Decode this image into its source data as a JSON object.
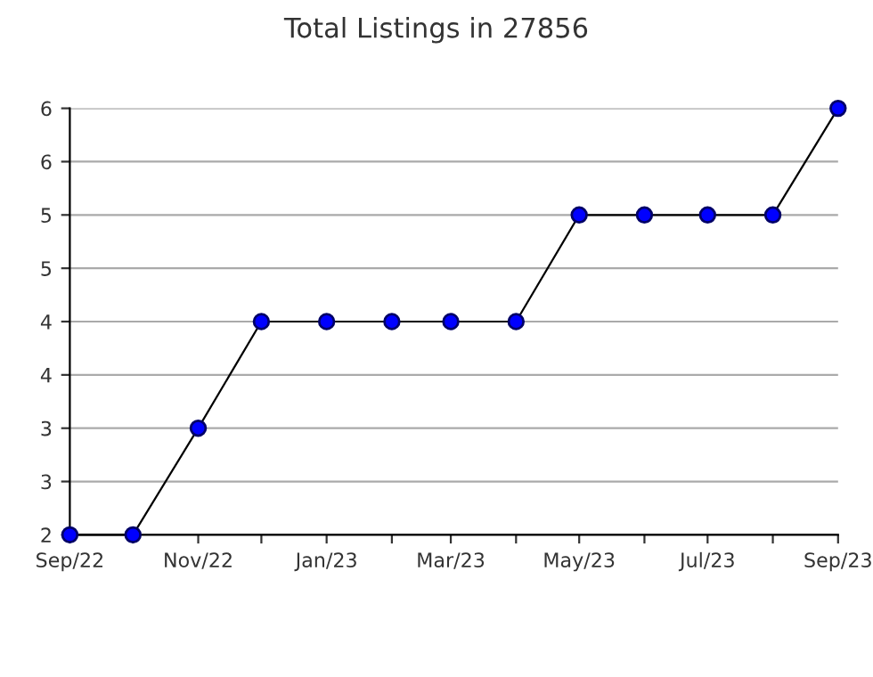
{
  "chart_data": {
    "type": "line",
    "title": "Total Listings in 27856",
    "x": [
      "2022-09",
      "2022-10",
      "2022-11",
      "2022-12",
      "2023-01",
      "2023-02",
      "2023-03",
      "2023-04",
      "2023-05",
      "2023-06",
      "2023-07",
      "2023-08",
      "2023-09"
    ],
    "series": [
      {
        "color": "#0000ff",
        "values": [
          2,
          2,
          3,
          4,
          4,
          4,
          4,
          4,
          5,
          5,
          5,
          5,
          6
        ]
      }
    ],
    "xlim": [
      "2022-09",
      "2023-09"
    ],
    "xticks": [
      {
        "value": "2022-09",
        "label": "Sep/22"
      },
      {
        "value": "2022-10",
        "label": null
      },
      {
        "value": "2022-11",
        "label": "Nov/22"
      },
      {
        "value": "2022-12",
        "label": null
      },
      {
        "value": "2023-01",
        "label": "Jan/23"
      },
      {
        "value": "2023-02",
        "label": null
      },
      {
        "value": "2023-03",
        "label": "Mar/23"
      },
      {
        "value": "2023-04",
        "label": null
      },
      {
        "value": "2023-05",
        "label": "May/23"
      },
      {
        "value": "2023-06",
        "label": null
      },
      {
        "value": "2023-07",
        "label": "Jul/23"
      },
      {
        "value": "2023-08",
        "label": null
      },
      {
        "value": "2023-09",
        "label": "Sep/23"
      }
    ],
    "ylim": [
      2,
      6
    ],
    "yticks": [
      2,
      {
        "value": 2.5,
        "label": "3"
      },
      3,
      {
        "value": 3.5,
        "label": "4"
      },
      4,
      {
        "value": 4.5,
        "label": "5"
      },
      5,
      {
        "value": 5.5,
        "label": "6"
      },
      6
    ],
    "grid": "y",
    "marker": "circle",
    "line_style": "solid"
  }
}
